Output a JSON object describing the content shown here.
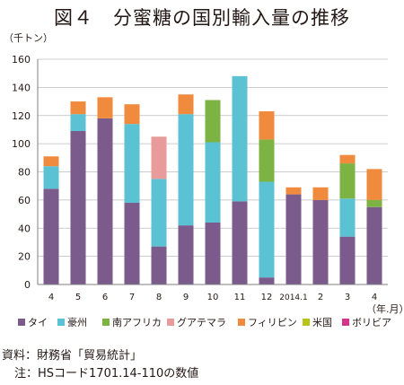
{
  "header": {
    "title": "図４　分蜜糖の国別輸入量の推移"
  },
  "footer": {
    "source": "資料：財務省「貿易統計」",
    "note": "注：HSコード1701.14-110の数値"
  },
  "chart_data": {
    "type": "bar",
    "stacked": true,
    "title": "図４　分蜜糖の国別輸入量の推移",
    "ylabel": "（千トン）",
    "xlabel": "（年.月）",
    "ylim": [
      0,
      160
    ],
    "yticks": [
      0,
      20,
      40,
      60,
      80,
      100,
      120,
      140,
      160
    ],
    "grid": true,
    "legend_position": "bottom",
    "categories": [
      "4",
      "5",
      "6",
      "7",
      "8",
      "9",
      "10",
      "11",
      "12",
      "2014.1",
      "2",
      "3",
      "4"
    ],
    "series": [
      {
        "name": "タイ",
        "color": "#7b5a8c",
        "values": [
          68,
          109,
          118,
          58,
          27,
          42,
          44,
          59,
          5,
          64,
          60,
          34,
          55
        ]
      },
      {
        "name": "豪州",
        "color": "#5bc2d3",
        "values": [
          16,
          12,
          0,
          56,
          48,
          79,
          57,
          89,
          68,
          0,
          0,
          27,
          0
        ]
      },
      {
        "name": "南アフリカ",
        "color": "#7cb342",
        "values": [
          0,
          0,
          0,
          0,
          0,
          0,
          30,
          0,
          30,
          0,
          0,
          25,
          5
        ]
      },
      {
        "name": "グアテマラ",
        "color": "#e99a9a",
        "values": [
          0,
          0,
          0,
          0,
          30,
          0,
          0,
          0,
          0,
          0,
          0,
          0,
          0
        ]
      },
      {
        "name": "フィリピン",
        "color": "#f08a3c",
        "values": [
          7,
          9,
          15,
          14,
          0,
          14,
          0,
          0,
          20,
          5,
          9,
          6,
          22
        ]
      },
      {
        "name": "米国",
        "color": "#b8c41a",
        "values": [
          0,
          0,
          0,
          0,
          0,
          0,
          0,
          0,
          0,
          0,
          0,
          0,
          0
        ]
      },
      {
        "name": "ボリビア",
        "color": "#d6338a",
        "values": [
          0,
          0,
          0,
          0,
          0,
          0,
          0,
          0,
          0,
          0,
          0,
          0,
          0
        ]
      }
    ]
  }
}
